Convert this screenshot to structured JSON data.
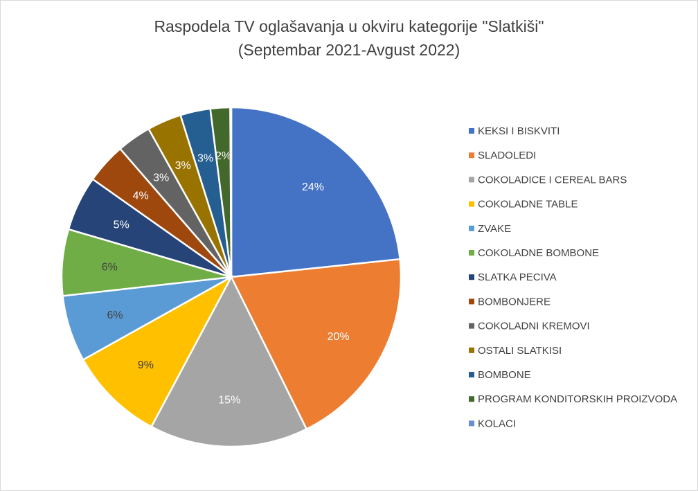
{
  "chart_data": {
    "type": "pie",
    "title": "Raspodela TV oglašavanja u okviru kategorije \"Slatkiši\"",
    "subtitle": "(Septembar 2021-Avgust 2022)",
    "legend_position": "right",
    "slices": [
      {
        "name": "KEKSI I BISKVITI",
        "value": 23.6,
        "label": "24%",
        "color": "#4472C4",
        "label_color": "#ffffff"
      },
      {
        "name": "SLADOLEDI",
        "value": 19.6,
        "label": "20%",
        "color": "#ED7D31",
        "label_color": "#ffffff"
      },
      {
        "name": "COKOLADICE I CEREAL BARS",
        "value": 15.3,
        "label": "15%",
        "color": "#A5A5A5",
        "label_color": "#ffffff"
      },
      {
        "name": "COKOLADNE TABLE",
        "value": 9.2,
        "label": "9%",
        "color": "#FFC000",
        "label_color": "#404040"
      },
      {
        "name": "ZVAKE",
        "value": 6.4,
        "label": "6%",
        "color": "#5B9BD5",
        "label_color": "#404040"
      },
      {
        "name": "COKOLADNE BOMBONE",
        "value": 6.4,
        "label": "6%",
        "color": "#70AD47",
        "label_color": "#404040"
      },
      {
        "name": "SLATKA PECIVA",
        "value": 5.3,
        "label": "5%",
        "color": "#264478",
        "label_color": "#ffffff"
      },
      {
        "name": "BOMBONJERE",
        "value": 3.9,
        "label": "4%",
        "color": "#9E480E",
        "label_color": "#ffffff"
      },
      {
        "name": "COKOLADNI KREMOVI",
        "value": 3.3,
        "label": "3%",
        "color": "#636363",
        "label_color": "#ffffff"
      },
      {
        "name": "OSTALI SLATKISI",
        "value": 3.3,
        "label": "3%",
        "color": "#997300",
        "label_color": "#ffffff"
      },
      {
        "name": "BOMBONE",
        "value": 2.9,
        "label": "3%",
        "color": "#255E91",
        "label_color": "#ffffff"
      },
      {
        "name": "PROGRAM KONDITORSKIH PROIZVODA",
        "value": 1.9,
        "label": "2%",
        "color": "#43682B",
        "label_color": "#ffffff"
      },
      {
        "name": "KOLACI",
        "value": 0.1,
        "label": "",
        "color": "#698ED0",
        "label_color": "#ffffff"
      }
    ]
  }
}
